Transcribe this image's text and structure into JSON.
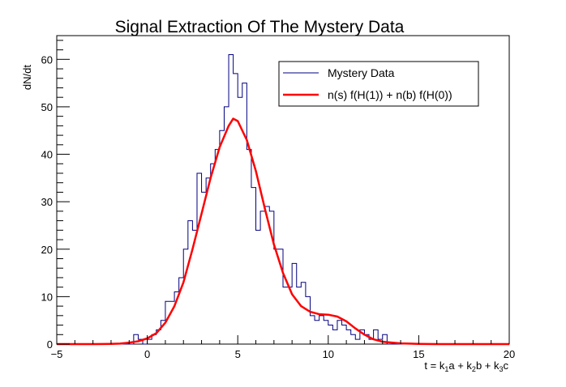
{
  "chart_data": {
    "type": "histogram+line",
    "title": "Signal Extraction Of The Mystery Data",
    "ylabel": "dN/dt",
    "xlabel_parts": [
      "t = k",
      "1",
      "a + k",
      "2",
      "b + k",
      "3",
      "c"
    ],
    "xlim": [
      -5,
      20
    ],
    "ylim": [
      0,
      65
    ],
    "x_ticks": [
      -5,
      0,
      5,
      10,
      15,
      20
    ],
    "y_ticks": [
      0,
      10,
      20,
      30,
      40,
      50,
      60
    ],
    "bin_width": 0.25,
    "legend": {
      "placement": "top-right",
      "entries": [
        {
          "label": "Mystery Data",
          "color": "#000080",
          "style": "line"
        },
        {
          "label": "n(s) f(H(1)) + n(b) f(H(0))",
          "color": "#ff0000",
          "style": "thick-line"
        }
      ]
    },
    "series": [
      {
        "name": "Mystery Data",
        "kind": "histogram",
        "color": "#000080",
        "bins": [
          {
            "x0": -0.75,
            "y": 2
          },
          {
            "x0": -0.5,
            "y": 1
          },
          {
            "x0": -0.25,
            "y": 0
          },
          {
            "x0": 0.0,
            "y": 1
          },
          {
            "x0": 0.25,
            "y": 2
          },
          {
            "x0": 0.5,
            "y": 3
          },
          {
            "x0": 0.75,
            "y": 5
          },
          {
            "x0": 1.0,
            "y": 9
          },
          {
            "x0": 1.25,
            "y": 9
          },
          {
            "x0": 1.5,
            "y": 11
          },
          {
            "x0": 1.75,
            "y": 14
          },
          {
            "x0": 2.0,
            "y": 20
          },
          {
            "x0": 2.25,
            "y": 26
          },
          {
            "x0": 2.5,
            "y": 24
          },
          {
            "x0": 2.75,
            "y": 36
          },
          {
            "x0": 3.0,
            "y": 32
          },
          {
            "x0": 3.25,
            "y": 35
          },
          {
            "x0": 3.5,
            "y": 38
          },
          {
            "x0": 3.75,
            "y": 41
          },
          {
            "x0": 4.0,
            "y": 45
          },
          {
            "x0": 4.25,
            "y": 50
          },
          {
            "x0": 4.5,
            "y": 61
          },
          {
            "x0": 4.75,
            "y": 57
          },
          {
            "x0": 5.0,
            "y": 52
          },
          {
            "x0": 5.25,
            "y": 55
          },
          {
            "x0": 5.5,
            "y": 41
          },
          {
            "x0": 5.75,
            "y": 33
          },
          {
            "x0": 6.0,
            "y": 24
          },
          {
            "x0": 6.25,
            "y": 28
          },
          {
            "x0": 6.5,
            "y": 29
          },
          {
            "x0": 6.75,
            "y": 28
          },
          {
            "x0": 7.0,
            "y": 20
          },
          {
            "x0": 7.25,
            "y": 20
          },
          {
            "x0": 7.5,
            "y": 12
          },
          {
            "x0": 7.75,
            "y": 12
          },
          {
            "x0": 8.0,
            "y": 17
          },
          {
            "x0": 8.25,
            "y": 12
          },
          {
            "x0": 8.5,
            "y": 13
          },
          {
            "x0": 8.75,
            "y": 10
          },
          {
            "x0": 9.0,
            "y": 6
          },
          {
            "x0": 9.25,
            "y": 5
          },
          {
            "x0": 9.5,
            "y": 6
          },
          {
            "x0": 9.75,
            "y": 5
          },
          {
            "x0": 10.0,
            "y": 4
          },
          {
            "x0": 10.25,
            "y": 3
          },
          {
            "x0": 10.5,
            "y": 5
          },
          {
            "x0": 10.75,
            "y": 4
          },
          {
            "x0": 11.0,
            "y": 3
          },
          {
            "x0": 11.25,
            "y": 2
          },
          {
            "x0": 11.5,
            "y": 1
          },
          {
            "x0": 11.75,
            "y": 3
          },
          {
            "x0": 12.0,
            "y": 2
          },
          {
            "x0": 12.25,
            "y": 1
          },
          {
            "x0": 12.5,
            "y": 3
          },
          {
            "x0": 12.75,
            "y": 1
          },
          {
            "x0": 13.0,
            "y": 2
          }
        ]
      },
      {
        "name": "n(s) f(H(1)) + n(b) f(H(0))",
        "kind": "line",
        "color": "#ff0000",
        "points": [
          [
            -5,
            0
          ],
          [
            -4,
            0
          ],
          [
            -3,
            0
          ],
          [
            -2,
            0.05
          ],
          [
            -1.5,
            0.1
          ],
          [
            -1,
            0.3
          ],
          [
            -0.5,
            0.6
          ],
          [
            0,
            1.2
          ],
          [
            0.5,
            2.3
          ],
          [
            1,
            4.5
          ],
          [
            1.5,
            8
          ],
          [
            2,
            13
          ],
          [
            2.5,
            20
          ],
          [
            3,
            27.5
          ],
          [
            3.5,
            35
          ],
          [
            4,
            41.5
          ],
          [
            4.5,
            46
          ],
          [
            4.75,
            47.5
          ],
          [
            5,
            47
          ],
          [
            5.5,
            43
          ],
          [
            6,
            36.5
          ],
          [
            6.5,
            28.5
          ],
          [
            7,
            21
          ],
          [
            7.5,
            15
          ],
          [
            8,
            10.5
          ],
          [
            8.5,
            8
          ],
          [
            9,
            6.8
          ],
          [
            9.5,
            6.3
          ],
          [
            10,
            6.2
          ],
          [
            10.5,
            5.8
          ],
          [
            11,
            4.8
          ],
          [
            11.5,
            3.3
          ],
          [
            12,
            2
          ],
          [
            12.5,
            1
          ],
          [
            13,
            0.5
          ],
          [
            14,
            0.15
          ],
          [
            15,
            0.05
          ],
          [
            16,
            0
          ],
          [
            18,
            0
          ],
          [
            20,
            0
          ]
        ]
      }
    ]
  }
}
